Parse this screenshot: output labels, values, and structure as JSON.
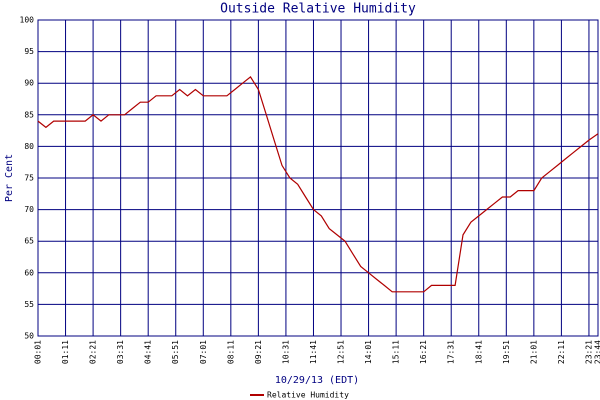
{
  "chart_data": {
    "type": "line",
    "title": "Outside Relative Humidity",
    "xlabel": "10/29/13 (EDT)",
    "ylabel": "Per Cent",
    "x": [
      "00:01",
      "00:21",
      "00:41",
      "01:01",
      "01:21",
      "01:41",
      "02:01",
      "02:21",
      "02:41",
      "03:01",
      "03:21",
      "03:41",
      "04:01",
      "04:21",
      "04:41",
      "05:01",
      "05:21",
      "05:41",
      "06:01",
      "06:21",
      "06:41",
      "07:01",
      "07:21",
      "07:41",
      "08:01",
      "08:21",
      "08:41",
      "09:01",
      "09:21",
      "09:41",
      "10:01",
      "10:21",
      "10:41",
      "11:01",
      "11:21",
      "11:41",
      "12:01",
      "12:21",
      "12:41",
      "13:01",
      "13:21",
      "13:41",
      "14:01",
      "14:21",
      "14:41",
      "15:01",
      "15:21",
      "15:41",
      "16:01",
      "16:21",
      "16:41",
      "17:01",
      "17:21",
      "17:41",
      "18:01",
      "18:21",
      "18:41",
      "19:01",
      "19:21",
      "19:41",
      "20:01",
      "20:21",
      "20:41",
      "21:01",
      "21:21",
      "21:41",
      "22:01",
      "22:21",
      "22:41",
      "23:01",
      "23:21",
      "23:44"
    ],
    "series": [
      {
        "name": "Relative Humidity",
        "color": "#b00000",
        "values": [
          84,
          83,
          84,
          84,
          84,
          84,
          84,
          85,
          84,
          85,
          85,
          85,
          86,
          87,
          87,
          88,
          88,
          88,
          89,
          88,
          89,
          88,
          88,
          88,
          88,
          89,
          90,
          91,
          89,
          85,
          81,
          77,
          75,
          74,
          72,
          70,
          69,
          67,
          66,
          65,
          63,
          61,
          60,
          59,
          58,
          57,
          57,
          57,
          57,
          57,
          58,
          58,
          58,
          58,
          66,
          68,
          69,
          70,
          71,
          72,
          72,
          73,
          73,
          73,
          75,
          76,
          77,
          78,
          79,
          80,
          81,
          82
        ]
      }
    ],
    "xlim": [
      "00:01",
      "23:44"
    ],
    "xticks": [
      "00:01",
      "01:11",
      "02:21",
      "03:31",
      "04:41",
      "05:51",
      "07:01",
      "08:11",
      "09:21",
      "10:31",
      "11:41",
      "12:51",
      "14:01",
      "15:11",
      "16:21",
      "17:31",
      "18:41",
      "19:51",
      "21:01",
      "22:11",
      "23:21",
      "23:44"
    ],
    "ylim": [
      50,
      100
    ],
    "yticks": [
      50,
      55,
      60,
      65,
      70,
      75,
      80,
      85,
      90,
      95,
      100
    ],
    "grid": true
  }
}
